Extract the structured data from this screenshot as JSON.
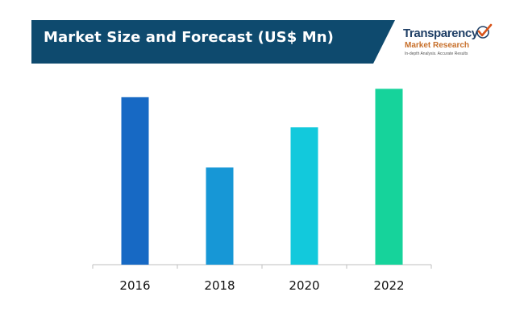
{
  "header": {
    "title": "Market Size and Forecast (US$ Mn)"
  },
  "logo": {
    "name_line1": "Transparency",
    "name_line2": "Market Research",
    "tagline": "In-depth Analysis. Accurate Results",
    "icon": "checkmark-icon"
  },
  "colors": {
    "banner": "#0e4a6e",
    "bars": [
      "#1769c4",
      "#1797d6",
      "#12c9dc",
      "#16d39b"
    ]
  },
  "chart_data": {
    "type": "bar",
    "title": "Market Size and Forecast (US$ Mn)",
    "xlabel": "",
    "ylabel": "",
    "categories": [
      "2016",
      "2018",
      "2020",
      "2022"
    ],
    "values": [
      100,
      58,
      82,
      105
    ],
    "ylim": [
      0,
      110
    ],
    "grid": false,
    "legend": "none"
  }
}
